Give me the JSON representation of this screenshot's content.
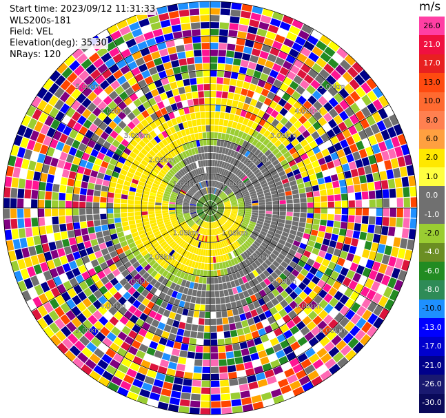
{
  "info": {
    "start_time": "Start time: 2023/09/12 11:31:33",
    "instrument": "WLS200s-181",
    "field": "Field: VEL",
    "elevation": "Elevation(deg): 35.30",
    "nrays": "NRays: 120"
  },
  "range_labels": [
    "1.00km",
    "2.00km",
    "3.00km",
    "4.00km",
    "5.00km"
  ],
  "colorbar": {
    "unit": "m/s",
    "ticks": [
      "26.0",
      "21.0",
      "17.0",
      "13.0",
      "10.0",
      "8.0",
      "6.0",
      "2.0",
      "1.0",
      "0.0",
      "-1.0",
      "-2.0",
      "-4.0",
      "-6.0",
      "-8.0",
      "-10.0",
      "-13.0",
      "-17.0",
      "-21.0",
      "-26.0",
      "-30.0"
    ],
    "colors": [
      "#ff3fa4",
      "#f01040",
      "#e82020",
      "#ff4a10",
      "#ff6a30",
      "#ff8050",
      "#ffa040",
      "#ffe800",
      "#ffff40",
      "#707070",
      "#707070",
      "#9acd32",
      "#6b8e23",
      "#228b22",
      "#2e8b57",
      "#1e90ff",
      "#0000ff",
      "#0000cd",
      "#00008b",
      "#191970",
      "#0a0a5a"
    ]
  },
  "map_data": {
    "n_rays": 120,
    "n_gates": 30,
    "max_range_km": 6.0,
    "rings_km": [
      1,
      2,
      3,
      4,
      5,
      6
    ],
    "spokes": 12,
    "noise_palette": [
      "#ff1493",
      "#ff4500",
      "#ffd700",
      "#ffff00",
      "#9acd32",
      "#228b22",
      "#1e90ff",
      "#0000ff",
      "#00008b",
      "#000080",
      "#707070",
      "#ff69b4",
      "#ffa500",
      "#800080",
      "#dc143c",
      "#ffffff"
    ]
  }
}
